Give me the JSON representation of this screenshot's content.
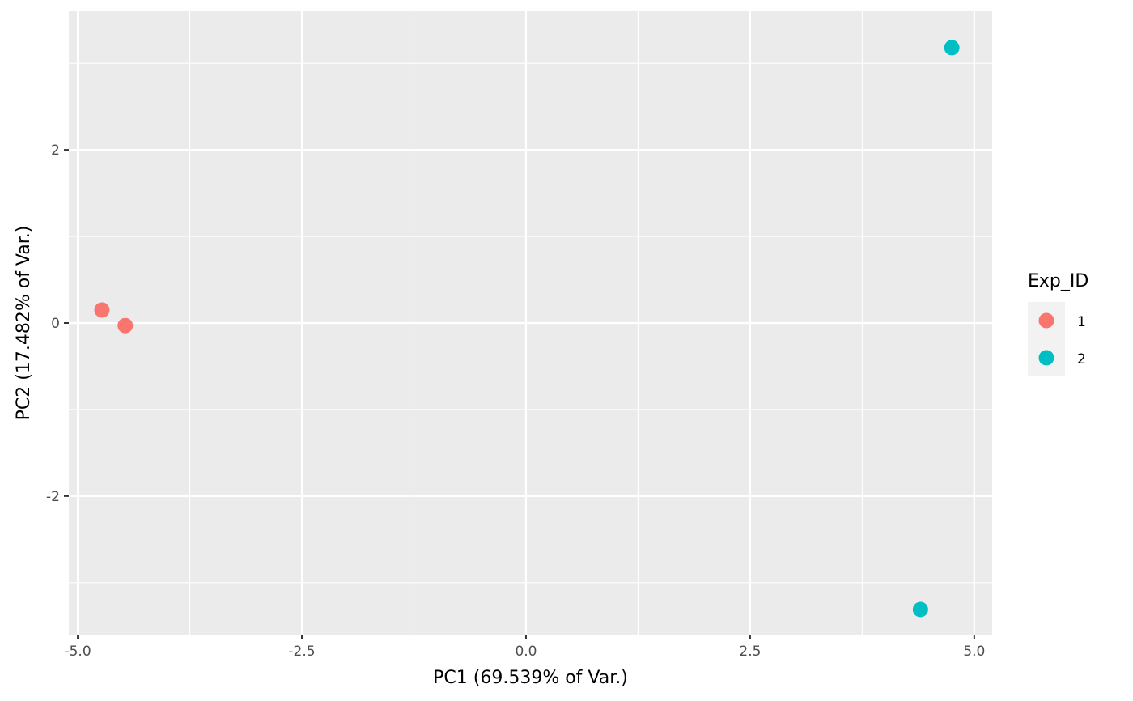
{
  "chart_data": {
    "type": "scatter",
    "xlabel": "PC1 (69.539% of Var.)",
    "ylabel": "PC2 (17.482% of Var.)",
    "xlim": [
      -5.1,
      5.2
    ],
    "ylim": [
      -3.6,
      3.6
    ],
    "x_ticks": [
      -5.0,
      -2.5,
      0.0,
      2.5,
      5.0
    ],
    "x_tick_labels": [
      "-5.0",
      "-2.5",
      "0.0",
      "2.5",
      "5.0"
    ],
    "y_ticks": [
      -2,
      0,
      2
    ],
    "y_tick_labels": [
      "-2",
      "0",
      "2"
    ],
    "grid": true,
    "legend": {
      "title": "Exp_ID",
      "placement": "right",
      "entries": [
        {
          "label": "1",
          "color": "#F8766D"
        },
        {
          "label": "2",
          "color": "#00BFC4"
        }
      ]
    },
    "series": [
      {
        "group": "1",
        "color": "#F8766D",
        "points": [
          {
            "x": -4.73,
            "y": 0.15
          },
          {
            "x": -4.47,
            "y": -0.03
          }
        ]
      },
      {
        "group": "2",
        "color": "#00BFC4",
        "points": [
          {
            "x": 4.75,
            "y": 3.18
          },
          {
            "x": 4.4,
            "y": -3.31
          }
        ]
      }
    ],
    "colors": {
      "panel": "#EBEBEB",
      "grid": "#FFFFFF",
      "legend_key_bg": "#F2F2F2"
    }
  }
}
